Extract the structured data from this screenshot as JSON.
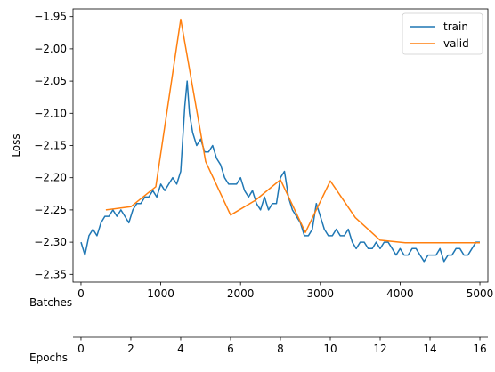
{
  "chart_data": {
    "type": "line",
    "title": "",
    "ylabel": "Loss",
    "xlabel_batches": "Batches",
    "xlabel_epochs": "Epochs",
    "xlim": [
      -100,
      5100
    ],
    "ylim": [
      -2.362,
      -1.938
    ],
    "grid": false,
    "legend_position": "top-right",
    "y_ticks": [
      -2.35,
      -2.3,
      -2.25,
      -2.2,
      -2.15,
      -2.1,
      -2.05,
      -2.0,
      -1.95
    ],
    "y_tick_labels": [
      "−2.35",
      "−2.30",
      "−2.25",
      "−2.20",
      "−2.15",
      "−2.10",
      "−2.05",
      "−2.00",
      "−1.95"
    ],
    "batch_ticks": [
      0,
      1000,
      2000,
      3000,
      4000,
      5000
    ],
    "batch_tick_labels": [
      "0",
      "1000",
      "2000",
      "3000",
      "4000",
      "5000"
    ],
    "epoch_ticks": [
      0,
      2,
      4,
      6,
      8,
      10,
      12,
      14,
      16
    ],
    "epoch_tick_labels": [
      "0",
      "2",
      "4",
      "6",
      "8",
      "10",
      "12",
      "14",
      "16"
    ],
    "epoch_max": 16,
    "series": [
      {
        "name": "train",
        "color": "#1f77b4",
        "x": [
          0,
          50,
          100,
          150,
          200,
          250,
          300,
          350,
          400,
          450,
          500,
          550,
          600,
          650,
          700,
          750,
          800,
          850,
          900,
          950,
          1000,
          1050,
          1100,
          1150,
          1200,
          1250,
          1300,
          1330,
          1360,
          1400,
          1450,
          1500,
          1550,
          1600,
          1650,
          1700,
          1750,
          1800,
          1850,
          1900,
          1950,
          2000,
          2050,
          2100,
          2150,
          2200,
          2250,
          2300,
          2350,
          2400,
          2450,
          2500,
          2550,
          2600,
          2650,
          2700,
          2750,
          2800,
          2850,
          2900,
          2950,
          3000,
          3050,
          3100,
          3150,
          3200,
          3250,
          3300,
          3350,
          3400,
          3450,
          3500,
          3550,
          3600,
          3650,
          3700,
          3750,
          3800,
          3850,
          3900,
          3950,
          4000,
          4050,
          4100,
          4150,
          4200,
          4250,
          4300,
          4350,
          4400,
          4450,
          4500,
          4550,
          4600,
          4650,
          4700,
          4750,
          4800,
          4850,
          4900,
          4950,
          5000
        ],
        "values": [
          -2.3,
          -2.32,
          -2.29,
          -2.28,
          -2.29,
          -2.27,
          -2.26,
          -2.26,
          -2.25,
          -2.26,
          -2.25,
          -2.26,
          -2.27,
          -2.25,
          -2.24,
          -2.24,
          -2.23,
          -2.23,
          -2.22,
          -2.23,
          -2.21,
          -2.22,
          -2.21,
          -2.2,
          -2.21,
          -2.19,
          -2.09,
          -2.05,
          -2.1,
          -2.13,
          -2.15,
          -2.14,
          -2.16,
          -2.16,
          -2.15,
          -2.17,
          -2.18,
          -2.2,
          -2.21,
          -2.21,
          -2.21,
          -2.2,
          -2.22,
          -2.23,
          -2.22,
          -2.24,
          -2.25,
          -2.23,
          -2.25,
          -2.24,
          -2.24,
          -2.2,
          -2.19,
          -2.23,
          -2.25,
          -2.26,
          -2.27,
          -2.29,
          -2.29,
          -2.28,
          -2.24,
          -2.26,
          -2.28,
          -2.29,
          -2.29,
          -2.28,
          -2.29,
          -2.29,
          -2.28,
          -2.3,
          -2.31,
          -2.3,
          -2.3,
          -2.31,
          -2.31,
          -2.3,
          -2.31,
          -2.3,
          -2.3,
          -2.31,
          -2.32,
          -2.31,
          -2.32,
          -2.32,
          -2.31,
          -2.31,
          -2.32,
          -2.33,
          -2.32,
          -2.32,
          -2.32,
          -2.31,
          -2.33,
          -2.32,
          -2.32,
          -2.31,
          -2.31,
          -2.32,
          -2.32,
          -2.31,
          -2.3,
          -2.3
        ]
      },
      {
        "name": "valid",
        "color": "#ff7f0e",
        "x": [
          312,
          625,
          938,
          1250,
          1563,
          1875,
          2188,
          2500,
          2813,
          3125,
          3438,
          3750,
          4063,
          4375,
          4688,
          5000
        ],
        "values": [
          -2.25,
          -2.245,
          -2.214,
          -1.954,
          -2.175,
          -2.258,
          -2.235,
          -2.203,
          -2.285,
          -2.205,
          -2.262,
          -2.297,
          -2.301,
          -2.301,
          -2.301,
          -2.301
        ]
      }
    ]
  }
}
